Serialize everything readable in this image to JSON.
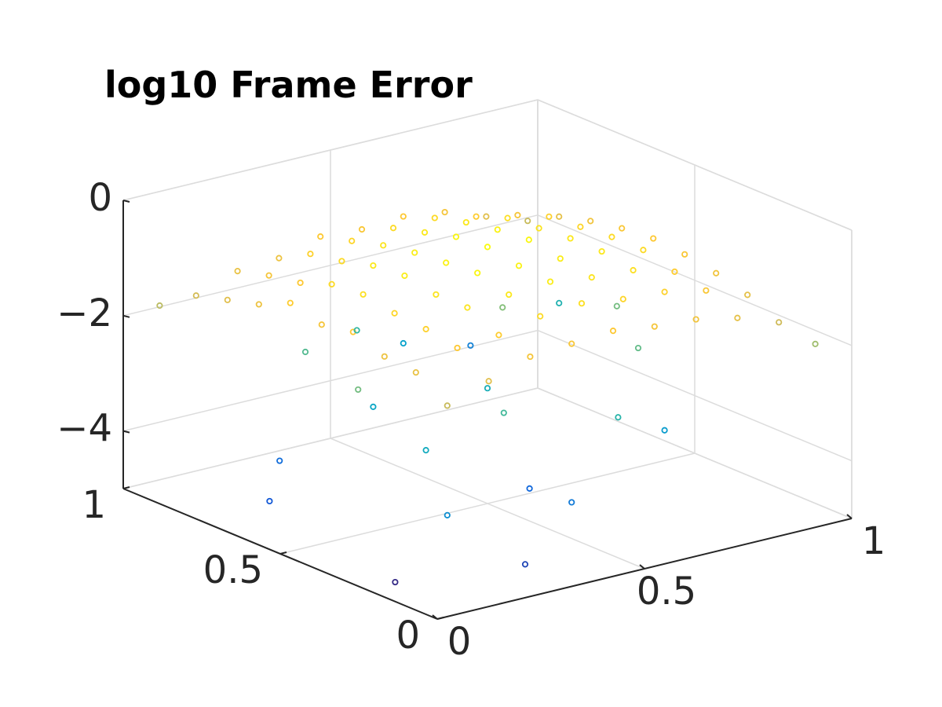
{
  "chart_data": {
    "type": "scatter3d",
    "title": "log10 Frame Error",
    "x": [
      0.1,
      0.1,
      0.1,
      0.1,
      0.1,
      0.1,
      0.1,
      0.1,
      0.1,
      0.2,
      0.2,
      0.2,
      0.2,
      0.2,
      0.2,
      0.2,
      0.2,
      0.2,
      0.3,
      0.3,
      0.3,
      0.3,
      0.3,
      0.3,
      0.3,
      0.3,
      0.3,
      0.4,
      0.4,
      0.4,
      0.4,
      0.4,
      0.4,
      0.4,
      0.4,
      0.4,
      0.5,
      0.5,
      0.5,
      0.5,
      0.5,
      0.5,
      0.5,
      0.5,
      0.5,
      0.6,
      0.6,
      0.6,
      0.6,
      0.6,
      0.6,
      0.6,
      0.6,
      0.6,
      0.7,
      0.7,
      0.7,
      0.7,
      0.7,
      0.7,
      0.7,
      0.7,
      0.7,
      0.8,
      0.8,
      0.8,
      0.8,
      0.8,
      0.8,
      0.8,
      0.8,
      0.8,
      0.9,
      0.9,
      0.9,
      0.9,
      0.9,
      0.9,
      0.9,
      0.9,
      0.9,
      0.15,
      0.35,
      0.55,
      0.75,
      0.25,
      0.65,
      0.45,
      0.85,
      0.05,
      0.95,
      0.5,
      0.3,
      0.7,
      0.2,
      0.6,
      0.9,
      0.1,
      0.4,
      0.15,
      0.05,
      0.25,
      0.8,
      0.45,
      0.05
    ],
    "y": [
      0.1,
      0.2,
      0.3,
      0.4,
      0.5,
      0.6,
      0.7,
      0.8,
      0.9,
      0.1,
      0.2,
      0.3,
      0.4,
      0.5,
      0.6,
      0.7,
      0.8,
      0.9,
      0.1,
      0.2,
      0.3,
      0.4,
      0.5,
      0.6,
      0.7,
      0.8,
      0.9,
      0.1,
      0.2,
      0.3,
      0.4,
      0.5,
      0.6,
      0.7,
      0.8,
      0.9,
      0.1,
      0.2,
      0.3,
      0.4,
      0.5,
      0.6,
      0.7,
      0.8,
      0.9,
      0.1,
      0.2,
      0.3,
      0.4,
      0.5,
      0.6,
      0.7,
      0.8,
      0.9,
      0.1,
      0.2,
      0.3,
      0.4,
      0.5,
      0.6,
      0.7,
      0.8,
      0.9,
      0.1,
      0.2,
      0.3,
      0.4,
      0.5,
      0.6,
      0.7,
      0.8,
      0.9,
      0.1,
      0.2,
      0.3,
      0.4,
      0.5,
      0.6,
      0.7,
      0.8,
      0.9,
      0.45,
      0.25,
      0.15,
      0.35,
      0.75,
      0.65,
      0.85,
      0.55,
      0.95,
      0.05,
      0.5,
      0.6,
      0.2,
      0.3,
      0.9,
      0.8,
      0.1,
      0.1,
      0.7,
      0.6,
      0.05,
      0.95,
      0.3,
      0.2
    ],
    "z": [
      -1.7,
      -1.35,
      -1.3,
      -1.1,
      -1.2,
      -1.05,
      -1.3,
      -1.45,
      -1.6,
      -1.45,
      -1.1,
      -1.0,
      -0.95,
      -0.85,
      -0.9,
      -1.1,
      -1.2,
      -1.35,
      -1.2,
      -1.05,
      -0.8,
      -0.8,
      -0.7,
      -0.75,
      -0.9,
      -1.0,
      -1.3,
      -1.15,
      -0.9,
      -0.75,
      -0.6,
      -0.65,
      -0.7,
      -0.8,
      -0.95,
      -1.1,
      -1.1,
      -0.85,
      -0.7,
      -0.65,
      -0.55,
      -0.6,
      -0.75,
      -0.9,
      -1.15,
      -1.2,
      -0.95,
      -0.8,
      -0.7,
      -0.6,
      -0.65,
      -0.75,
      -0.9,
      -1.1,
      -1.25,
      -1.0,
      -0.85,
      -0.75,
      -0.75,
      -0.8,
      -0.85,
      -1.05,
      -1.2,
      -1.4,
      -1.15,
      -1.05,
      -0.9,
      -0.9,
      -0.95,
      -1.0,
      -1.2,
      -1.45,
      -1.65,
      -1.4,
      -1.25,
      -1.15,
      -1.1,
      -1.15,
      -1.25,
      -1.4,
      -1.7,
      -2.3,
      -2.6,
      -2.8,
      -2.4,
      -2.5,
      -2.2,
      -2.7,
      -2.3,
      -1.8,
      -2.0,
      -3.0,
      -3.2,
      -3.4,
      -3.1,
      -3.3,
      -2.9,
      -3.6,
      -3.9,
      -4.1,
      -4.4,
      -4.6,
      -3.8,
      -4.2,
      -4.9
    ],
    "xlim": [
      0,
      1
    ],
    "ylim": [
      0,
      1
    ],
    "zlim": [
      -5,
      0
    ],
    "xticks": [
      0,
      0.5,
      1
    ],
    "yticks": [
      0,
      0.5,
      1
    ],
    "zticks": [
      {
        "value": -4,
        "label": "−4"
      },
      {
        "value": -2,
        "label": "−2"
      },
      0
    ],
    "grid": true,
    "colormap": "parula"
  }
}
